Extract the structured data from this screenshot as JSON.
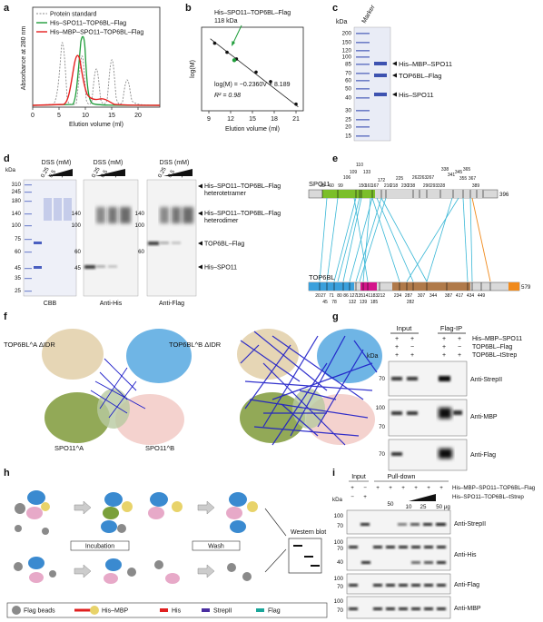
{
  "panel_letters": [
    "a",
    "b",
    "c",
    "d",
    "e",
    "f",
    "g",
    "h",
    "i"
  ],
  "a": {
    "legend": [
      "Protein standard",
      "His–SPO11–TOP6BL–Flag",
      "His–MBP–SPO11–TOP6BL–Flag"
    ],
    "ylabel": "Absorbance at 280 nm",
    "xlabel": "Elution volume (ml)",
    "xticks": [
      "0",
      "5",
      "10",
      "15",
      "20"
    ],
    "colors": {
      "standard": "#8a8a8a",
      "his": "#1f9d3a",
      "mbp": "#e5201f"
    }
  },
  "b": {
    "annotation_line1": "His–SPO11–TOP6BL–Flag",
    "annotation_line2": "118 kDa",
    "equation": "log(M) = −0.2360V + 8.189",
    "r2": "R² = 0.98",
    "ylabel": "log(M)",
    "xlabel": "Elution volume (ml)",
    "xticks": [
      "9",
      "12",
      "15",
      "18",
      "21"
    ],
    "chart_data": {
      "type": "scatter",
      "x": [
        9.8,
        11.5,
        12.8,
        15.5,
        17.5,
        21.0
      ],
      "y": [
        5.83,
        5.45,
        5.17,
        4.62,
        4.22,
        3.28
      ],
      "highlight": {
        "x": 12.5,
        "y": 5.12
      },
      "fit": {
        "slope": -0.236,
        "intercept": 8.189
      },
      "xlim": [
        8,
        22
      ],
      "ylim": [
        3,
        6.5
      ]
    }
  },
  "c": {
    "marker_label": "Marker",
    "kda": "kDa",
    "ladder": [
      "200",
      "150",
      "120",
      "100",
      "85",
      "70",
      "60",
      "50",
      "40",
      "30",
      "25",
      "20",
      "15"
    ],
    "bands": [
      "His–MBP–SPO11",
      "TOP6BL–Flag",
      "His–SPO11"
    ]
  },
  "d": {
    "kda": "kDa",
    "dss_label": "DSS (mM)",
    "dss_conc": [
      "0.25",
      "0.5",
      "1"
    ],
    "ladder": [
      "310",
      "245",
      "180",
      "140",
      "100",
      "75",
      "60",
      "45",
      "35",
      "25"
    ],
    "blot_labels": [
      "CBB",
      "Anti-His",
      "Anti-Flag"
    ],
    "right_marker": [
      "140",
      "100",
      "60",
      "45"
    ],
    "ann_line1": "His–SPO11–TOP6BL–Flag",
    "ann_tetramer": "heterotetramer",
    "ann_dimer": "heterodimer",
    "ann_top6bl": "TOP6BL–Flag",
    "ann_spo11": "His–SPO11"
  },
  "e": {
    "spo11_label": "SPO11",
    "spo11_end": "396",
    "spo11_top_nums": [
      "28",
      "60",
      "99",
      "106",
      "109",
      "110",
      "133",
      "150",
      "161",
      "167",
      "172",
      "216",
      "218",
      "225",
      "230",
      "238",
      "262",
      "263",
      "267",
      "290",
      "293",
      "328",
      "338",
      "341",
      "345",
      "355",
      "365",
      "367",
      "389"
    ],
    "top6bl_label": "TOP6BL",
    "top6bl_end": "579",
    "top6bl_bottom_nums": [
      "20",
      "27",
      "45",
      "71",
      "78",
      "80",
      "86",
      "127",
      "132",
      "135",
      "139",
      "141",
      "183",
      "185",
      "212",
      "234",
      "282",
      "287",
      "307",
      "344",
      "387",
      "417",
      "434",
      "449"
    ],
    "colors": {
      "green": "#7bbf2a",
      "blue_dom": "#3aa0dc",
      "magenta": "#d4148a",
      "brown": "#b07a4a",
      "link": "#39b7d6",
      "orange": "#f08a1c"
    }
  },
  "f": {
    "labels": [
      "TOP6BL^A ΔIDR",
      "TOP6BL^B ΔIDR",
      "SPO11^A",
      "SPO11^B"
    ]
  },
  "g": {
    "input": "Input",
    "flag_ip": "Flag-IP",
    "row_labels": [
      "His–MBP–SPO11",
      "TOP6BL–Flag",
      "TOP6BL–tStrep"
    ],
    "signs": [
      [
        "+",
        "+",
        "+",
        "+"
      ],
      [
        "+",
        "−",
        "+",
        "−"
      ],
      [
        "+",
        "+",
        "+",
        "+"
      ]
    ],
    "kda": "kDa",
    "blots": [
      {
        "marker": "70",
        "label": "Anti-StrepII"
      },
      {
        "marker": "100",
        "marker2": "70",
        "label": "Anti-MBP"
      },
      {
        "marker": "70",
        "label": "Anti-Flag"
      }
    ]
  },
  "h": {
    "incubation": "Incubation",
    "wash": "Wash",
    "western": "Western blot",
    "legend": [
      "Flag beads",
      "His–MBP",
      "His",
      "StrepII",
      "Flag"
    ],
    "legend_colors": [
      "#8a8a8a",
      "#e8d36a",
      "#e02020",
      "#4a2ea0",
      "#1aa69a"
    ]
  },
  "i": {
    "input": "Input",
    "pulldown": "Pull-down",
    "row1_label": "His–MBP–SPO11–TOP6BL–Flag",
    "row2_label": "His–SPO11–TOP6BL–tStrep",
    "row1_signs": [
      "+",
      "−",
      "+",
      "+",
      "+",
      "+",
      "+",
      "+"
    ],
    "row2_signs": [
      "−",
      "+"
    ],
    "row2_vals": [
      "50",
      "10",
      "25",
      "50 µg"
    ],
    "kda": "kDa",
    "blots": [
      {
        "markers": [
          "100",
          "70"
        ],
        "label": "Anti-StrepII"
      },
      {
        "markers": [
          "100",
          "70",
          "40"
        ],
        "label": "Anti-His"
      },
      {
        "markers": [
          "100",
          "70"
        ],
        "label": "Anti-Flag"
      },
      {
        "markers": [
          "100",
          "70"
        ],
        "label": "Anti-MBP"
      }
    ]
  }
}
